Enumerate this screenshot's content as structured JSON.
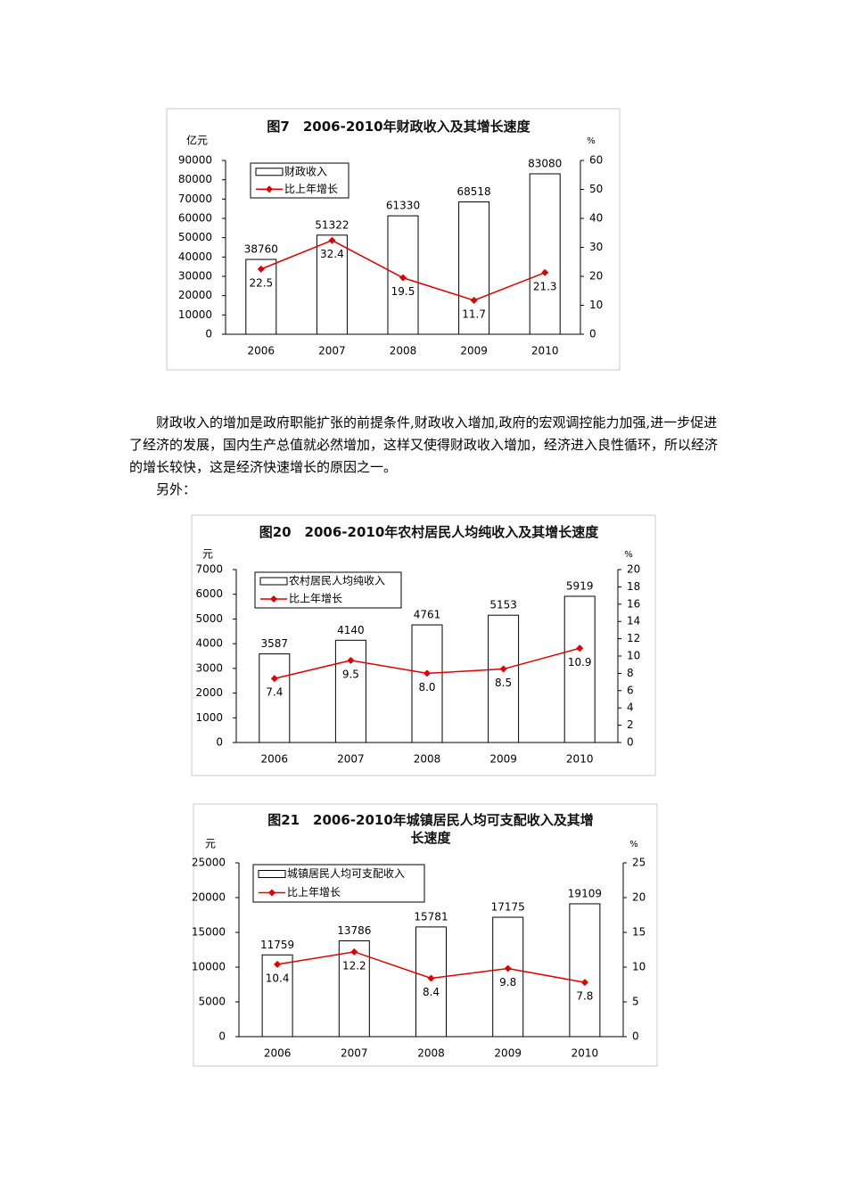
{
  "chart_data": [
    {
      "type": "bar_line",
      "title": "图7　2006-2010年财政收入及其增长速度",
      "y_label": "亿元",
      "y2_label": "%",
      "categories": [
        "2006",
        "2007",
        "2008",
        "2009",
        "2010"
      ],
      "series": [
        {
          "name": "财政收入",
          "color": "#ffffff",
          "values": [
            38760,
            51322,
            61330,
            68518,
            83080
          ]
        },
        {
          "name": "比上年增长",
          "color": "#e00000",
          "axis": "y2",
          "values": [
            22.5,
            32.4,
            19.5,
            11.7,
            21.3
          ],
          "value_labels": [
            "22.5",
            "32.4",
            "19.5",
            "11.7",
            "21.3"
          ]
        }
      ],
      "ylim": [
        0,
        90000
      ],
      "yticks": [
        0,
        10000,
        20000,
        30000,
        40000,
        50000,
        60000,
        70000,
        80000,
        90000
      ],
      "y2lim": [
        0,
        60
      ],
      "y2ticks": [
        0,
        10,
        20,
        30,
        40,
        50,
        60
      ],
      "legend": "upper left",
      "grid": false
    },
    {
      "type": "bar_line",
      "title": "图20　2006-2010年农村居民人均纯收入及其增长速度",
      "y_label": "元",
      "y2_label": "%",
      "categories": [
        "2006",
        "2007",
        "2008",
        "2009",
        "2010"
      ],
      "series": [
        {
          "name": "农村居民人均纯收入",
          "color": "#ffffff",
          "values": [
            3587,
            4140,
            4761,
            5153,
            5919
          ]
        },
        {
          "name": "比上年增长",
          "color": "#e00000",
          "axis": "y2",
          "values": [
            7.4,
            9.5,
            8.0,
            8.5,
            10.9
          ],
          "value_labels": [
            "7.4",
            "9.5",
            "8.0",
            "8.5",
            "10.9"
          ]
        }
      ],
      "ylim": [
        0,
        7000
      ],
      "yticks": [
        0,
        1000,
        2000,
        3000,
        4000,
        5000,
        6000,
        7000
      ],
      "y2lim": [
        0,
        20
      ],
      "y2ticks": [
        0,
        2,
        4,
        6,
        8,
        10,
        12,
        14,
        16,
        18,
        20
      ],
      "legend": "upper left",
      "grid": false
    },
    {
      "type": "bar_line",
      "title": "图21　2006-2010年城镇居民人均可支配收入及其增长速度",
      "y_label": "元",
      "y2_label": "%",
      "categories": [
        "2006",
        "2007",
        "2008",
        "2009",
        "2010"
      ],
      "series": [
        {
          "name": "城镇居民人均可支配收入",
          "color": "#ffffff",
          "values": [
            11759,
            13786,
            15781,
            17175,
            19109
          ]
        },
        {
          "name": "比上年增长",
          "color": "#e00000",
          "axis": "y2",
          "values": [
            10.4,
            12.2,
            8.4,
            9.8,
            7.8
          ],
          "value_labels": [
            "10.4",
            "12.2",
            "8.4",
            "9.8",
            "7.8"
          ]
        }
      ],
      "ylim": [
        0,
        25000
      ],
      "yticks": [
        0,
        5000,
        10000,
        15000,
        20000,
        25000
      ],
      "y2lim": [
        0,
        25
      ],
      "y2ticks": [
        0,
        5,
        10,
        15,
        20,
        25
      ],
      "legend": "upper left",
      "grid": false
    }
  ],
  "document": {
    "paragraphs": [
      "财政收入的增加是政府职能扩张的前提条件,财政收入增加,政府的宏观调控能力加强,进一步促进了经济的发展，国内生产总值就必然增加，这样又使得财政收入增加，经济进入良性循环，所以经济的增长较快，这是经济快速增长的原因之一。",
      "另外："
    ]
  }
}
